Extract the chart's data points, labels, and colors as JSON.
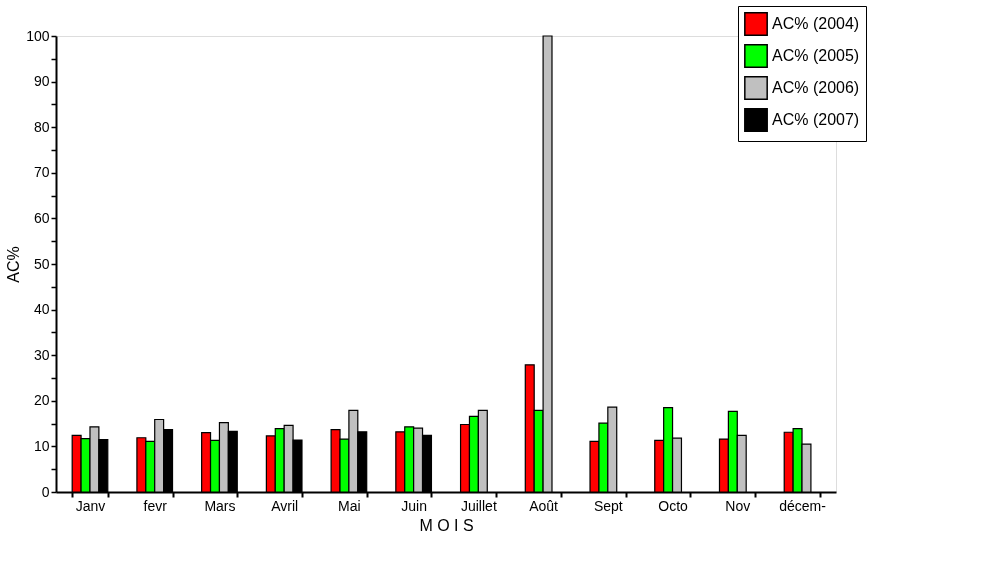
{
  "chart_data": {
    "type": "bar",
    "xlabel": "M O I S",
    "ylabel": "AC%",
    "categories": [
      "Janv",
      "fevr",
      "Mars",
      "Avril",
      "Mai",
      "Juin",
      "Juillet",
      "Août",
      "Sept",
      "Octo",
      "Nov",
      "décem-"
    ],
    "series": [
      {
        "name": "AC% (2004)",
        "color": "#ff0000",
        "values": [
          12.4,
          11.9,
          13.0,
          12.3,
          13.7,
          13.2,
          14.8,
          27.9,
          11.1,
          11.3,
          11.6,
          13.1
        ]
      },
      {
        "name": "AC% (2005)",
        "color": "#00ff00",
        "values": [
          11.7,
          11.1,
          11.3,
          13.9,
          11.6,
          14.3,
          16.6,
          17.9,
          15.1,
          18.5,
          17.7,
          13.9
        ]
      },
      {
        "name": "AC% (2006)",
        "color": "#c0c0c0",
        "values": [
          14.3,
          15.9,
          15.2,
          14.6,
          17.9,
          14.0,
          17.9,
          100,
          18.6,
          11.8,
          12.4,
          10.5
        ]
      },
      {
        "name": "AC% (2007)",
        "color": "#000000",
        "values": [
          11.5,
          13.7,
          13.3,
          11.4,
          13.2,
          12.4,
          null,
          null,
          null,
          null,
          null,
          null
        ]
      }
    ],
    "ylim": [
      0,
      100
    ],
    "yticks": [
      0,
      {
        "value": 5,
        "label": null
      },
      10,
      {
        "value": 15,
        "label": null
      },
      20,
      {
        "value": 25,
        "label": null
      },
      30,
      {
        "value": 35,
        "label": null
      },
      40,
      {
        "value": 45,
        "label": null
      },
      50,
      {
        "value": 55,
        "label": null
      },
      60,
      {
        "value": 65,
        "label": null
      },
      70,
      {
        "value": 75,
        "label": null
      },
      80,
      {
        "value": 85,
        "label": null
      },
      90,
      {
        "value": 95,
        "label": null
      },
      100
    ],
    "grid": false,
    "legend": "top right"
  }
}
